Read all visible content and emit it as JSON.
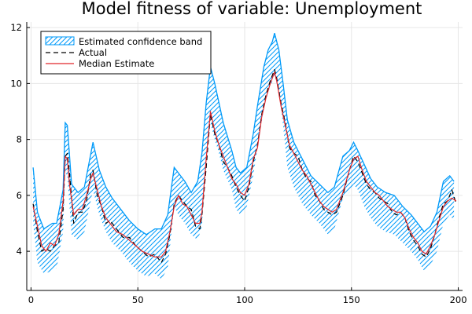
{
  "chart_data": {
    "type": "line",
    "title": "Model fitness of variable: Unemployment",
    "xlabel": "",
    "ylabel": "",
    "xlim": [
      -2,
      202
    ],
    "ylim": [
      2.6,
      12.2
    ],
    "xticks": [
      0,
      50,
      100,
      150,
      200
    ],
    "yticks": [
      4,
      6,
      8,
      10,
      12
    ],
    "grid": true,
    "legend_position": "top-left",
    "band": {
      "name": "Estimated confidence band",
      "color": "#009af9",
      "x": [
        1,
        3,
        6,
        10,
        12,
        15,
        16,
        17,
        19,
        22,
        25,
        29,
        32,
        35,
        38,
        42,
        46,
        50,
        54,
        58,
        61,
        64,
        67,
        69,
        72,
        75,
        78,
        80,
        82,
        84,
        86,
        88,
        90,
        94,
        96,
        98,
        101,
        104,
        106,
        109,
        111,
        113,
        114,
        116,
        118,
        120,
        123,
        127,
        131,
        135,
        139,
        142,
        146,
        149,
        151,
        153,
        156,
        159,
        162,
        166,
        170,
        174,
        178,
        181,
        184,
        187,
        190,
        193,
        196,
        198
      ],
      "upper": [
        7.0,
        5.4,
        4.8,
        5.0,
        5.0,
        6.2,
        8.6,
        8.5,
        6.4,
        6.1,
        6.3,
        7.9,
        6.9,
        6.3,
        5.9,
        5.5,
        5.1,
        4.8,
        4.6,
        4.8,
        4.8,
        5.3,
        7.0,
        6.8,
        6.5,
        6.1,
        6.5,
        7.5,
        9.3,
        10.6,
        10.0,
        9.3,
        8.6,
        7.6,
        7.0,
        6.8,
        7.0,
        8.2,
        9.2,
        10.6,
        11.2,
        11.5,
        11.8,
        11.2,
        10.0,
        8.7,
        7.9,
        7.3,
        6.7,
        6.4,
        6.1,
        6.3,
        7.4,
        7.6,
        7.9,
        7.6,
        7.1,
        6.6,
        6.3,
        6.1,
        6.0,
        5.6,
        5.3,
        5.0,
        4.7,
        4.9,
        5.4,
        6.5,
        6.7,
        6.5
      ],
      "lower": [
        5.0,
        3.6,
        3.2,
        3.3,
        3.4,
        4.7,
        6.8,
        6.7,
        4.6,
        4.4,
        4.7,
        6.2,
        5.3,
        4.7,
        4.3,
        4.0,
        3.6,
        3.3,
        3.1,
        3.2,
        3.0,
        3.4,
        5.6,
        5.3,
        5.0,
        4.6,
        4.4,
        4.9,
        7.3,
        8.6,
        8.0,
        7.5,
        6.9,
        6.2,
        5.5,
        5.3,
        5.6,
        6.7,
        7.7,
        9.1,
        9.7,
        10.1,
        10.3,
        9.7,
        8.5,
        7.0,
        6.3,
        5.7,
        5.3,
        5.0,
        4.6,
        4.8,
        5.9,
        6.1,
        6.4,
        6.2,
        5.6,
        5.2,
        4.9,
        4.7,
        4.6,
        4.3,
        4.0,
        3.7,
        3.3,
        3.5,
        4.0,
        5.0,
        5.3,
        5.1
      ]
    },
    "series": [
      {
        "name": "Actual",
        "color": "#000000",
        "style": "dashed",
        "x": [
          1,
          3,
          5,
          7,
          9,
          11,
          13,
          15,
          16,
          17,
          18,
          20,
          22,
          24,
          26,
          28,
          29,
          31,
          33,
          35,
          37,
          40,
          43,
          46,
          49,
          52,
          55,
          58,
          61,
          63,
          65,
          67,
          69,
          71,
          73,
          75,
          77,
          79,
          80,
          82,
          84,
          86,
          88,
          90,
          92,
          94,
          96,
          98,
          100,
          102,
          104,
          106,
          108,
          110,
          112,
          114,
          115,
          117,
          119,
          121,
          123,
          125,
          127,
          129,
          131,
          133,
          135,
          137,
          139,
          141,
          143,
          146,
          149,
          151,
          153,
          155,
          157,
          159,
          161,
          163,
          165,
          167,
          169,
          171,
          173,
          175,
          177,
          179,
          181,
          183,
          185,
          187,
          189,
          191,
          193,
          195,
          197,
          199
        ],
        "values": [
          5.7,
          4.7,
          4.0,
          4.1,
          4.0,
          4.2,
          4.3,
          5.5,
          7.4,
          7.5,
          6.8,
          5.0,
          5.4,
          5.4,
          5.8,
          6.8,
          6.9,
          6.0,
          5.6,
          5.0,
          5.1,
          4.8,
          4.5,
          4.5,
          4.2,
          4.0,
          3.8,
          3.9,
          3.6,
          3.9,
          4.6,
          5.7,
          6.0,
          5.8,
          5.6,
          5.5,
          4.9,
          4.8,
          5.3,
          7.0,
          8.9,
          8.2,
          7.8,
          7.2,
          7.0,
          6.7,
          6.3,
          6.0,
          5.8,
          6.3,
          7.2,
          7.8,
          8.9,
          9.6,
          10.1,
          10.5,
          10.2,
          9.3,
          8.6,
          7.7,
          7.5,
          7.4,
          6.9,
          6.6,
          6.5,
          6.0,
          5.8,
          5.5,
          5.4,
          5.3,
          5.4,
          6.0,
          6.9,
          7.4,
          7.2,
          6.8,
          6.4,
          6.2,
          6.1,
          5.9,
          5.8,
          5.7,
          5.4,
          5.3,
          5.4,
          5.2,
          4.7,
          4.4,
          4.2,
          3.9,
          3.8,
          4.1,
          4.6,
          5.2,
          5.7,
          5.8,
          6.2,
          5.7
        ]
      },
      {
        "name": "Median Estimate",
        "color": "#e0262b",
        "style": "solid",
        "x": [
          1,
          3,
          5,
          7,
          9,
          11,
          13,
          15,
          16,
          17,
          18,
          20,
          22,
          24,
          26,
          28,
          29,
          31,
          33,
          35,
          37,
          40,
          43,
          46,
          49,
          52,
          55,
          58,
          61,
          63,
          65,
          67,
          69,
          71,
          73,
          75,
          77,
          79,
          80,
          82,
          84,
          86,
          88,
          90,
          92,
          94,
          96,
          98,
          100,
          102,
          104,
          106,
          108,
          110,
          112,
          114,
          115,
          117,
          119,
          121,
          123,
          125,
          127,
          129,
          131,
          133,
          135,
          137,
          139,
          141,
          143,
          146,
          149,
          151,
          153,
          155,
          157,
          159,
          161,
          163,
          165,
          167,
          169,
          171,
          173,
          175,
          177,
          179,
          181,
          183,
          185,
          187,
          189,
          191,
          193,
          195,
          197,
          199
        ],
        "values": [
          5.6,
          4.9,
          4.2,
          4.0,
          4.3,
          4.2,
          4.6,
          5.8,
          7.4,
          7.3,
          6.4,
          5.3,
          5.5,
          5.5,
          6.0,
          6.6,
          6.8,
          6.2,
          5.6,
          5.2,
          5.0,
          4.7,
          4.6,
          4.4,
          4.2,
          4.0,
          3.9,
          3.8,
          3.8,
          4.0,
          4.7,
          5.6,
          6.0,
          5.7,
          5.6,
          5.3,
          5.0,
          5.0,
          5.4,
          7.3,
          9.0,
          8.3,
          7.8,
          7.4,
          7.0,
          6.6,
          6.4,
          6.1,
          6.0,
          6.4,
          7.3,
          7.7,
          8.8,
          9.5,
          10.0,
          10.4,
          10.1,
          9.2,
          8.5,
          7.8,
          7.5,
          7.2,
          6.9,
          6.7,
          6.4,
          6.1,
          5.8,
          5.6,
          5.5,
          5.4,
          5.5,
          6.1,
          6.9,
          7.3,
          7.4,
          6.9,
          6.5,
          6.3,
          6.1,
          6.0,
          5.8,
          5.6,
          5.5,
          5.4,
          5.4,
          5.2,
          4.8,
          4.5,
          4.3,
          4.0,
          3.9,
          4.2,
          4.6,
          5.1,
          5.6,
          5.8,
          5.9,
          5.8
        ]
      }
    ]
  }
}
